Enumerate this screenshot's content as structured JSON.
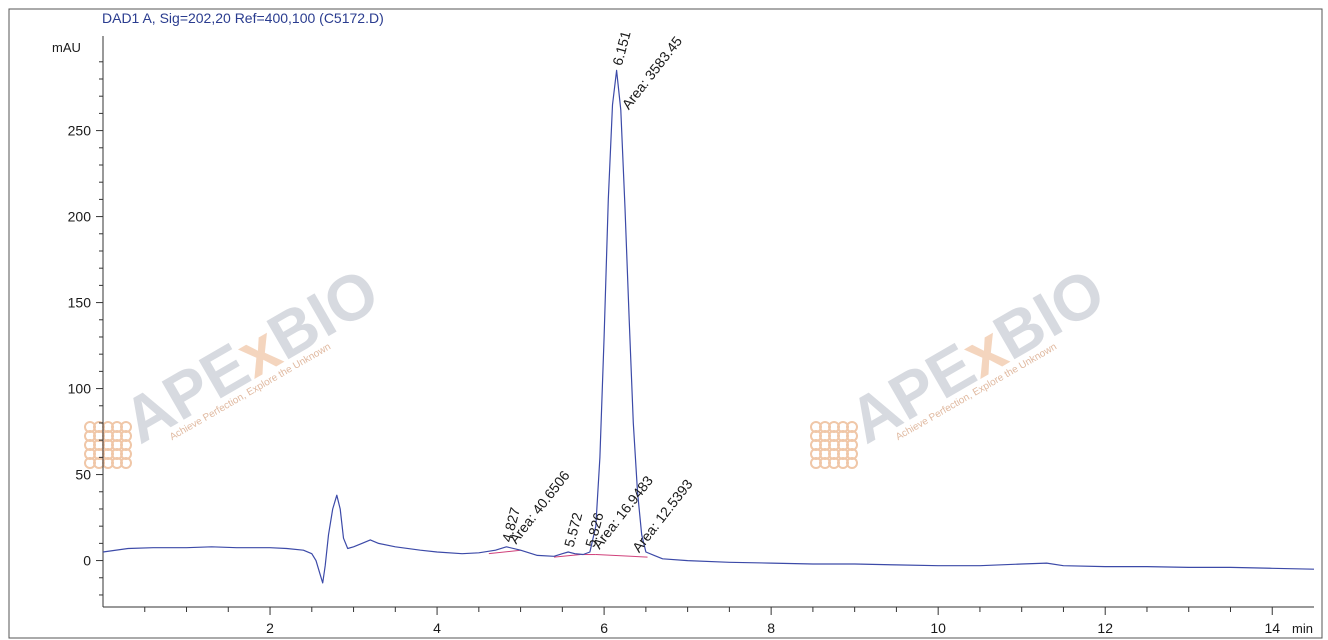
{
  "chart_data": {
    "type": "line",
    "title": "DAD1 A, Sig=202,20 Ref=400,100 (C5172.D)",
    "xlabel": "min",
    "ylabel": "mAU",
    "xlim": [
      0,
      14.5
    ],
    "ylim": [
      -27,
      305
    ],
    "x_ticks": [
      2,
      4,
      6,
      8,
      10,
      12,
      14
    ],
    "x_tick_labels": [
      "2",
      "4",
      "6",
      "8",
      "10",
      "12",
      "14"
    ],
    "y_ticks": [
      0,
      50,
      100,
      150,
      200,
      250
    ],
    "y_tick_labels": [
      "0",
      "50",
      "100",
      "150",
      "200",
      "250"
    ],
    "grid": false,
    "series": [
      {
        "color": "#3c4aa8",
        "x": [
          0.0,
          0.3,
          0.6,
          1.0,
          1.3,
          1.6,
          2.0,
          2.2,
          2.4,
          2.5,
          2.55,
          2.6,
          2.63,
          2.66,
          2.7,
          2.75,
          2.8,
          2.84,
          2.88,
          2.93,
          3.0,
          3.1,
          3.2,
          3.3,
          3.5,
          3.8,
          4.0,
          4.3,
          4.5,
          4.7,
          4.83,
          5.0,
          5.2,
          5.4,
          5.5,
          5.57,
          5.65,
          5.75,
          5.83,
          5.9,
          5.95,
          6.0,
          6.05,
          6.1,
          6.15,
          6.2,
          6.25,
          6.3,
          6.35,
          6.4,
          6.45,
          6.5,
          6.6,
          6.7,
          7.0,
          7.5,
          8.0,
          8.5,
          9.0,
          9.5,
          10.0,
          10.5,
          11.0,
          11.3,
          11.5,
          12.0,
          12.5,
          13.0,
          13.5,
          14.0,
          14.5
        ],
        "y": [
          5,
          7,
          7.5,
          7.5,
          8,
          7.5,
          7.5,
          7,
          6,
          4,
          0,
          -8,
          -13,
          -3,
          15,
          30,
          38,
          30,
          13,
          7,
          8,
          10,
          12,
          10,
          8,
          6,
          5,
          4,
          4.5,
          6,
          8,
          6,
          3,
          2.5,
          4,
          5,
          4,
          3.5,
          5,
          20,
          60,
          130,
          210,
          265,
          285,
          262,
          205,
          140,
          80,
          40,
          15,
          5,
          3,
          1,
          0,
          -1,
          -1.5,
          -2,
          -2,
          -2.5,
          -3,
          -3,
          -2,
          -1.5,
          -3,
          -3.5,
          -3.5,
          -4,
          -4,
          -4.5,
          -5
        ]
      }
    ],
    "peaks": [
      {
        "rt": "4.827",
        "area": "Area: 40.6506",
        "x": 4.827,
        "y": 8
      },
      {
        "rt": "5.572",
        "area": "",
        "x": 5.572,
        "y": 5
      },
      {
        "rt": "5.826",
        "area": "Area: 16.9483",
        "x": 5.826,
        "y": 5
      },
      {
        "rt": "6.151",
        "area": "Area: 3583.45",
        "x": 6.151,
        "y": 285
      },
      {
        "rt": "",
        "area": "Area: 12.5393",
        "x": 6.3,
        "y": 3
      }
    ],
    "baselines": [
      {
        "x": [
          4.62,
          5.0
        ],
        "y": [
          4.0,
          6.0
        ]
      },
      {
        "x": [
          5.4,
          5.72
        ],
        "y": [
          2.0,
          3.5
        ]
      },
      {
        "x": [
          5.72,
          5.9
        ],
        "y": [
          3.5,
          3.5
        ]
      },
      {
        "x": [
          5.9,
          6.52
        ],
        "y": [
          3.5,
          2.0
        ]
      }
    ],
    "colors": {
      "trace": "#3c4aa8",
      "baseline": "#d0407a",
      "axis": "#333333"
    }
  },
  "watermark": {
    "brand_a": "APE",
    "brand_x": "x",
    "brand_b": "BIO",
    "tagline": "Achieve Perfection, Explore the Unknown"
  }
}
